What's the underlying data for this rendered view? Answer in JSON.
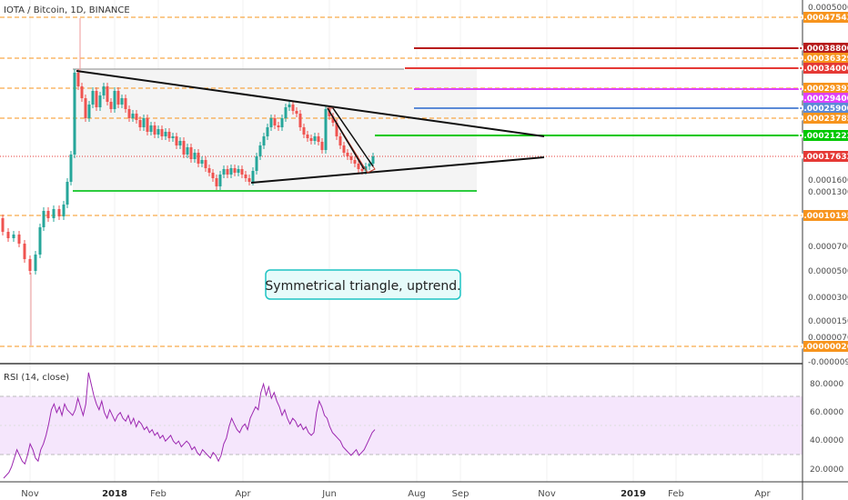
{
  "header": {
    "title": "IOTA / Bitcoin, 1D, BINANCE"
  },
  "rsi": {
    "label": "RSI (14, close)"
  },
  "annotation": {
    "text": "Symmetrical triangle, uptrend."
  },
  "chart_data": {
    "type": "candlestick",
    "symbol": "IOTA / Bitcoin",
    "interval": "1D",
    "exchange": "BINANCE",
    "x_ticks": [
      {
        "label": "Nov",
        "bold": false
      },
      {
        "label": "2018",
        "bold": true
      },
      {
        "label": "Feb",
        "bold": false
      },
      {
        "label": "Apr",
        "bold": false
      },
      {
        "label": "Jun",
        "bold": false
      },
      {
        "label": "Aug",
        "bold": false
      },
      {
        "label": "Sep",
        "bold": false
      },
      {
        "label": "Nov",
        "bold": false
      },
      {
        "label": "2019",
        "bold": true
      },
      {
        "label": "Feb",
        "bold": false
      },
      {
        "label": "Apr",
        "bold": false
      }
    ],
    "price_ticks": [
      "0.00050000",
      "0.00016000",
      "0.00013000",
      "0.00007000",
      "0.00005000",
      "0.00003000",
      "0.00001500",
      "0.00000700",
      "-0.00000900"
    ],
    "levels": [
      {
        "value": "0.00047543",
        "color": "#f7941d",
        "text_color": "#ffffff",
        "style": "dashed"
      },
      {
        "value": "0.00038800",
        "color": "#b71c1c",
        "text_color": "#ffffff",
        "style": "solid"
      },
      {
        "value": "0.00036329",
        "color": "#f7941d",
        "text_color": "#ffffff",
        "style": "dashed"
      },
      {
        "value": "0.00034000",
        "color": "#e53935",
        "text_color": "#ffffff",
        "style": "solid"
      },
      {
        "value": "0.00029392",
        "color": "#f7941d",
        "text_color": "#ffffff",
        "style": "dashed"
      },
      {
        "value": "0.00029400",
        "color": "#e040fb",
        "text_color": "#ffffff",
        "style": "solid"
      },
      {
        "value": "0.00025900",
        "color": "#5b8ad6",
        "text_color": "#ffffff",
        "style": "solid"
      },
      {
        "value": "0.00023785",
        "color": "#f7941d",
        "text_color": "#ffffff",
        "style": "dashed"
      },
      {
        "value": "0.00021222",
        "color": "#00c800",
        "text_color": "#ffffff",
        "style": "solid"
      },
      {
        "value": "0.00017632",
        "color": "#e53935",
        "text_color": "#ffffff",
        "style": "dotted"
      },
      {
        "value": "0.00010195",
        "color": "#f7941d",
        "text_color": "#ffffff",
        "style": "dashed"
      },
      {
        "value": "0.00000026",
        "color": "#f7941d",
        "text_color": "#ffffff",
        "style": "dashed"
      }
    ],
    "rsi_ticks": [
      "80.0000",
      "60.0000",
      "40.0000",
      "20.0000"
    ],
    "rsi_band": [
      30,
      70
    ],
    "rsi_values": [
      14,
      16,
      18,
      22,
      28,
      34,
      30,
      26,
      24,
      30,
      38,
      34,
      28,
      26,
      34,
      38,
      44,
      52,
      62,
      66,
      60,
      64,
      58,
      66,
      62,
      60,
      58,
      62,
      70,
      64,
      58,
      66,
      88,
      80,
      72,
      66,
      62,
      68,
      60,
      56,
      62,
      58,
      54,
      58,
      60,
      56,
      54,
      58,
      52,
      56,
      50,
      54,
      52,
      48,
      50,
      46,
      48,
      44,
      46,
      42,
      44,
      40,
      42,
      44,
      40,
      38,
      40,
      36,
      38,
      40,
      38,
      34,
      36,
      32,
      30,
      34,
      32,
      30,
      28,
      32,
      30,
      26,
      30,
      38,
      42,
      50,
      56,
      52,
      48,
      46,
      50,
      52,
      48,
      56,
      60,
      64,
      62,
      74,
      80,
      72,
      78,
      70,
      74,
      68,
      64,
      58,
      62,
      56,
      52,
      56,
      54,
      50,
      52,
      48,
      50,
      46,
      44,
      46,
      60,
      68,
      64,
      58,
      56,
      50,
      46,
      44,
      42,
      40,
      36,
      34,
      32,
      30,
      32,
      34,
      30,
      32,
      34,
      38,
      42,
      46,
      48
    ]
  }
}
